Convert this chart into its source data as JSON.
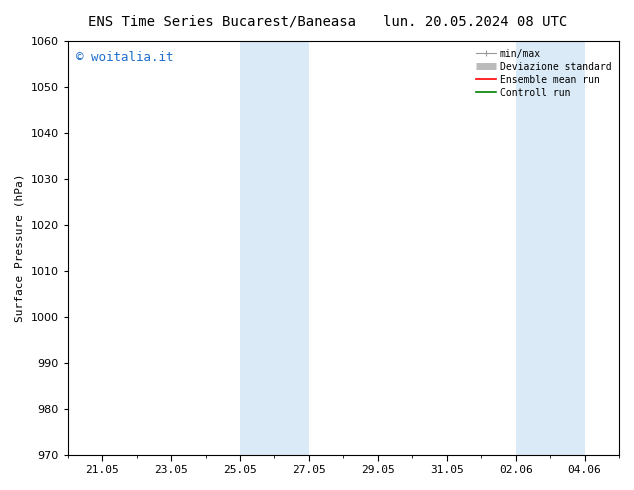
{
  "title_left": "ENS Time Series Bucarest/Baneasa",
  "title_right": "lun. 20.05.2024 08 UTC",
  "ylabel": "Surface Pressure (hPa)",
  "ylim": [
    970,
    1060
  ],
  "yticks": [
    970,
    980,
    990,
    1000,
    1010,
    1020,
    1030,
    1040,
    1050,
    1060
  ],
  "xtick_labels": [
    "21.05",
    "23.05",
    "25.05",
    "27.05",
    "29.05",
    "31.05",
    "02.06",
    "04.06"
  ],
  "xtick_positions_days": [
    1,
    3,
    5,
    7,
    9,
    11,
    13,
    15
  ],
  "xlim": [
    0,
    16
  ],
  "shaded_bands": [
    {
      "start_day": 5,
      "end_day": 7
    },
    {
      "start_day": 13,
      "end_day": 15
    }
  ],
  "shaded_color": "#daeaf7",
  "watermark_text": "© woitalia.it",
  "watermark_color": "#1e6fcc",
  "legend_labels": [
    "min/max",
    "Deviazione standard",
    "Ensemble mean run",
    "Controll run"
  ],
  "legend_colors": [
    "#999999",
    "#bbbbbb",
    "#ff0000",
    "#008000"
  ],
  "bg_color": "#ffffff",
  "font_size": 8,
  "title_font_size": 10
}
